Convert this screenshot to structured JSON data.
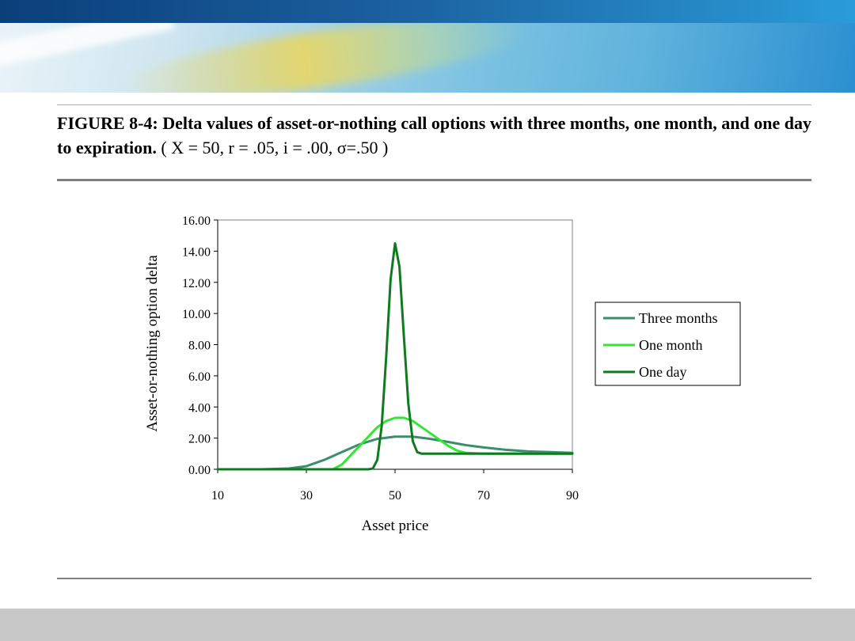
{
  "slide": {
    "caption_bold": "FIGURE 8-4: Delta values of asset-or-nothing call options with three months, one month, and one day to expiration.",
    "caption_params": "( X = 50,  r = .05,  i = .00,  σ=.50 )"
  },
  "colors": {
    "three_months": "#3a8f6a",
    "one_month": "#33e633",
    "one_day": "#0f7a1f"
  },
  "chart_data": {
    "type": "line",
    "title": "",
    "xlabel": "Asset price",
    "ylabel": "Asset-or-nothing option delta",
    "xlim": [
      10,
      90
    ],
    "ylim": [
      0,
      16
    ],
    "x_ticks": [
      "10",
      "30",
      "50",
      "70",
      "90"
    ],
    "y_ticks": [
      "0.00",
      "2.00",
      "4.00",
      "6.00",
      "8.00",
      "10.00",
      "12.00",
      "14.00",
      "16.00"
    ],
    "legend_position": "right",
    "grid": false,
    "series": [
      {
        "name": "Three months",
        "x": [
          10,
          20,
          26,
          30,
          34,
          38,
          42,
          46,
          50,
          54,
          58,
          62,
          66,
          70,
          75,
          80,
          85,
          90
        ],
        "y": [
          0.0,
          0.0,
          0.05,
          0.2,
          0.6,
          1.1,
          1.6,
          1.95,
          2.1,
          2.1,
          1.95,
          1.75,
          1.55,
          1.4,
          1.25,
          1.15,
          1.1,
          1.05
        ]
      },
      {
        "name": "One month",
        "x": [
          10,
          30,
          36,
          38,
          40,
          42,
          44,
          46,
          48,
          50,
          52,
          54,
          56,
          58,
          60,
          62,
          64,
          66,
          70,
          80,
          90
        ],
        "y": [
          0.0,
          0.0,
          0.0,
          0.3,
          0.9,
          1.5,
          2.1,
          2.7,
          3.1,
          3.3,
          3.3,
          3.1,
          2.7,
          2.3,
          1.9,
          1.5,
          1.2,
          1.05,
          1.0,
          1.0,
          1.0
        ]
      },
      {
        "name": "One day",
        "x": [
          10,
          44,
          45,
          46,
          47,
          48,
          49,
          50,
          51,
          52,
          53,
          54,
          55,
          56,
          60,
          70,
          80,
          90
        ],
        "y": [
          0.0,
          0.0,
          0.05,
          0.6,
          2.8,
          7.2,
          12.2,
          14.5,
          13.0,
          8.5,
          4.2,
          1.8,
          1.1,
          1.0,
          1.0,
          1.0,
          1.0,
          1.0
        ]
      }
    ]
  }
}
